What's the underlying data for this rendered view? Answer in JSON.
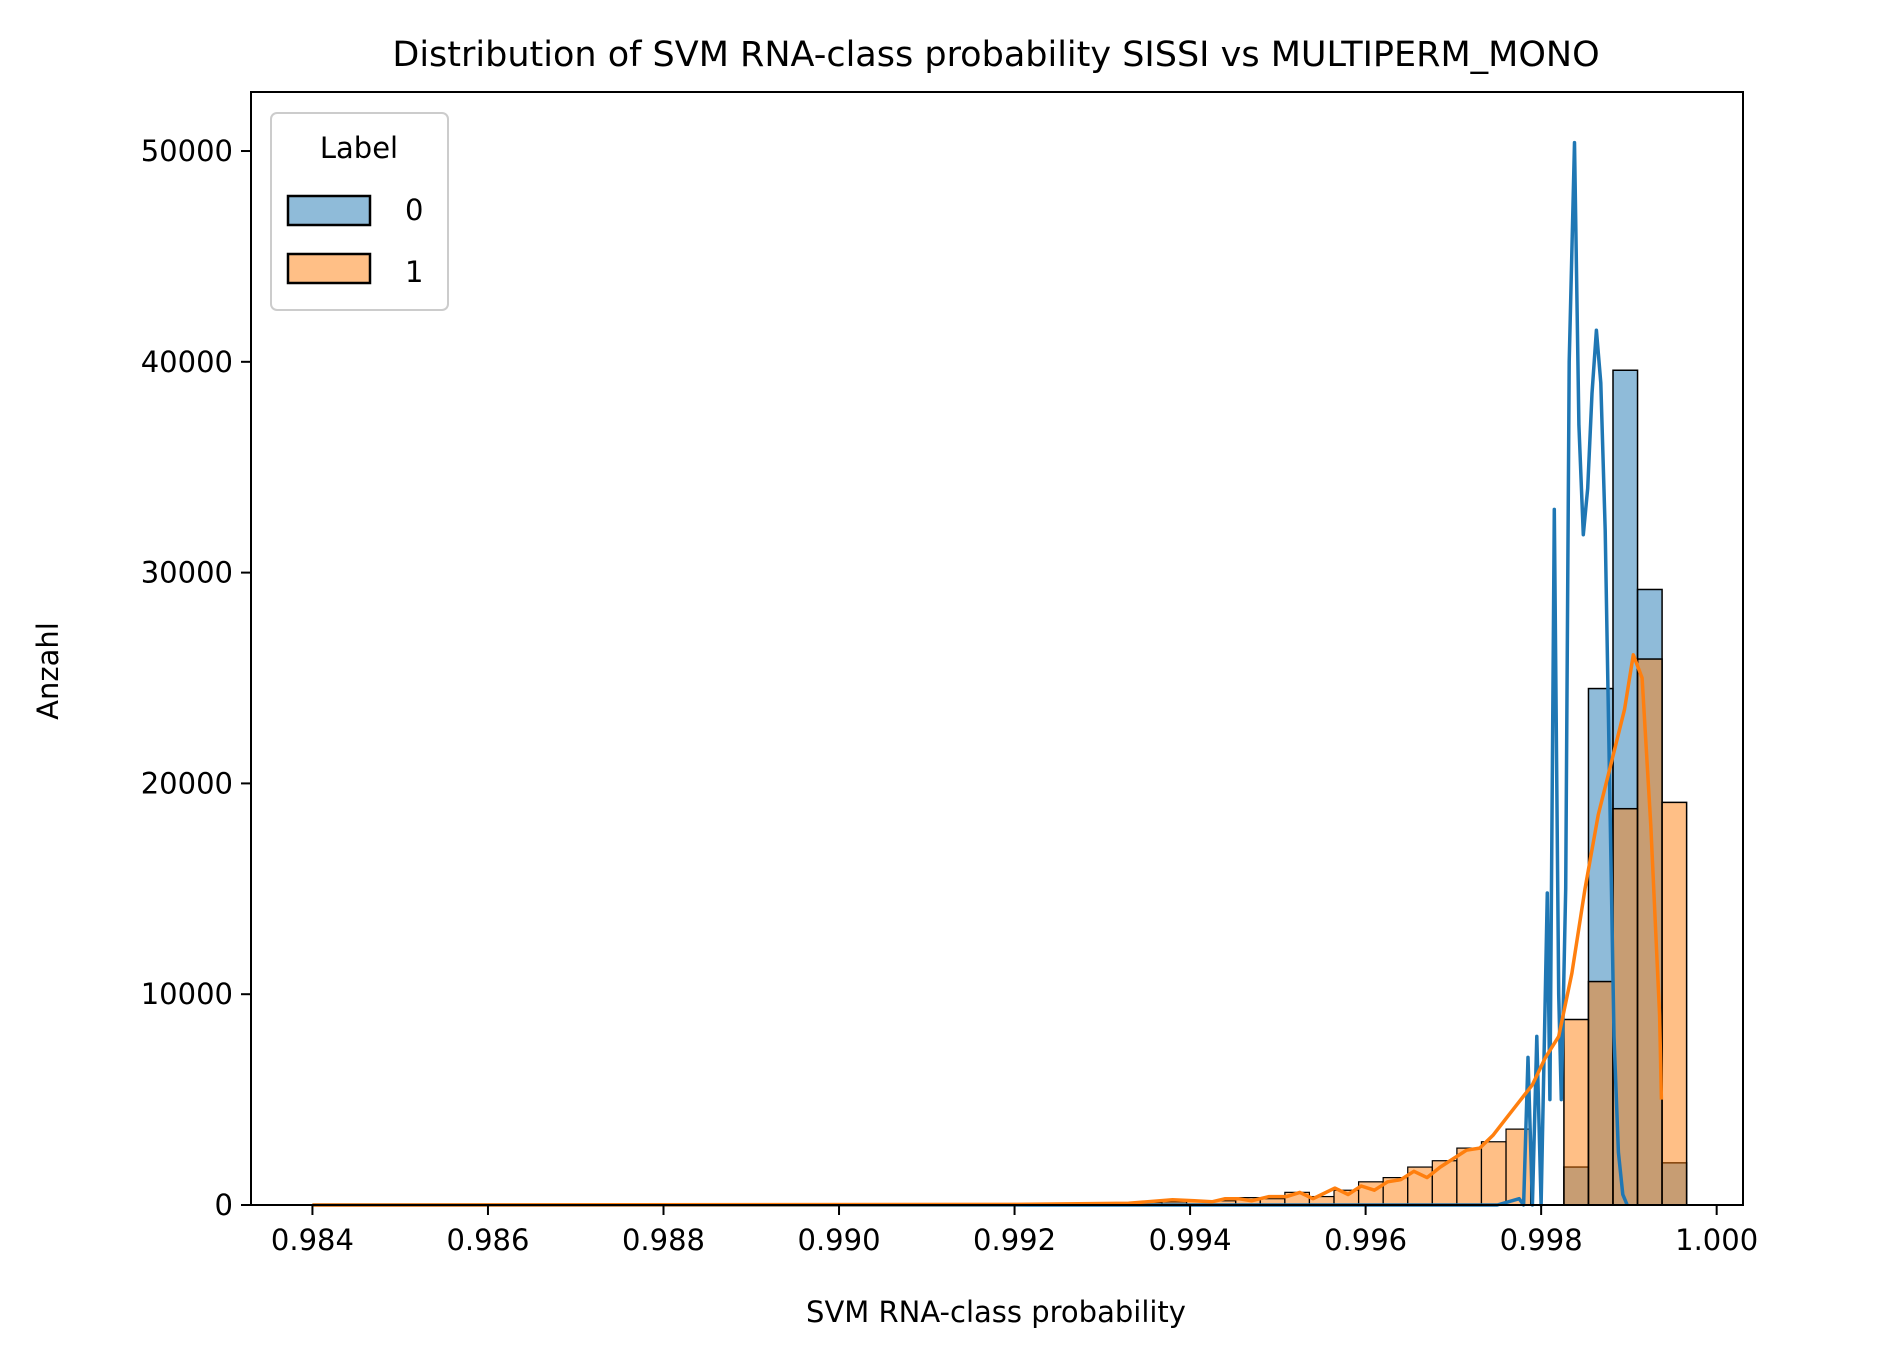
{
  "chart_data": {
    "type": "histogram",
    "title": "Distribution of SVM RNA-class probability SISSI vs MULTIPERM_MONO",
    "xlabel": "SVM RNA-class probability",
    "ylabel": "Anzahl",
    "xlim": [
      0.9833,
      1.0003
    ],
    "ylim": [
      0,
      52800
    ],
    "xticks": [
      0.984,
      0.986,
      0.988,
      0.99,
      0.992,
      0.994,
      0.996,
      0.998,
      1.0
    ],
    "xtick_labels": [
      "0.984",
      "0.986",
      "0.988",
      "0.990",
      "0.992",
      "0.994",
      "0.996",
      "0.998",
      "1.000"
    ],
    "yticks": [
      0,
      10000,
      20000,
      30000,
      40000,
      50000
    ],
    "ytick_labels": [
      "0",
      "10000",
      "20000",
      "30000",
      "40000",
      "50000"
    ],
    "grid": false,
    "legend": {
      "title": "Label",
      "placement": "top-left",
      "entries": [
        "0",
        "1"
      ]
    },
    "bins": {
      "start": 0.984,
      "width": 0.0002796,
      "count": 57
    },
    "series": [
      {
        "name": "0",
        "color": "#1f77b4",
        "fill": "rgba(31,119,180,0.5)",
        "counts": [
          0,
          0,
          0,
          0,
          0,
          0,
          0,
          0,
          0,
          0,
          0,
          0,
          0,
          0,
          0,
          0,
          0,
          0,
          0,
          0,
          0,
          0,
          0,
          0,
          0,
          0,
          0,
          0,
          0,
          0,
          0,
          0,
          0,
          0,
          0,
          0,
          0,
          0,
          0,
          0,
          0,
          0,
          0,
          0,
          0,
          0,
          0,
          0,
          0,
          0,
          0,
          1800,
          24500,
          39600,
          29200,
          2000,
          0
        ],
        "kde": [
          [
            0.984,
            0
          ],
          [
            0.9975,
            0
          ],
          [
            0.99775,
            300
          ],
          [
            0.9978,
            0
          ],
          [
            0.99785,
            7000
          ],
          [
            0.9979,
            0
          ],
          [
            0.99795,
            8000
          ],
          [
            0.998,
            0
          ],
          [
            0.99807,
            14800
          ],
          [
            0.9981,
            5000
          ],
          [
            0.99815,
            33000
          ],
          [
            0.9982,
            10000
          ],
          [
            0.99823,
            5000
          ],
          [
            0.99828,
            15000
          ],
          [
            0.99832,
            40000
          ],
          [
            0.99838,
            50400
          ],
          [
            0.99843,
            37000
          ],
          [
            0.99848,
            31800
          ],
          [
            0.99853,
            34000
          ],
          [
            0.99858,
            38500
          ],
          [
            0.99863,
            41500
          ],
          [
            0.99868,
            39000
          ],
          [
            0.99873,
            32000
          ],
          [
            0.99878,
            20000
          ],
          [
            0.99883,
            8000
          ],
          [
            0.99888,
            2500
          ],
          [
            0.99893,
            500
          ],
          [
            0.99898,
            0
          ]
        ]
      },
      {
        "name": "1",
        "color": "#ff7f0e",
        "fill": "rgba(255,127,14,0.5)",
        "counts": [
          0,
          0,
          0,
          0,
          0,
          0,
          0,
          0,
          0,
          0,
          0,
          0,
          0,
          0,
          0,
          0,
          0,
          0,
          0,
          0,
          0,
          0,
          0,
          0,
          0,
          0,
          0,
          0,
          0,
          0,
          0,
          0,
          0,
          0,
          0,
          0,
          0,
          0,
          0,
          0,
          0,
          0,
          0,
          0,
          0,
          0,
          0,
          0,
          0,
          0,
          0,
          8800,
          10600,
          18800,
          25900,
          19100,
          0
        ],
        "counts_tail": [
          [
            0.99284,
            80
          ],
          [
            0.99312,
            100
          ],
          [
            0.9934,
            120
          ],
          [
            0.99368,
            150
          ],
          [
            0.99396,
            180
          ],
          [
            0.99424,
            200
          ],
          [
            0.99452,
            350
          ],
          [
            0.9948,
            300
          ],
          [
            0.99508,
            600
          ],
          [
            0.99536,
            400
          ],
          [
            0.99564,
            700
          ],
          [
            0.99592,
            1100
          ],
          [
            0.9962,
            1300
          ],
          [
            0.99648,
            1800
          ],
          [
            0.99676,
            2100
          ],
          [
            0.99704,
            2700
          ],
          [
            0.99732,
            3000
          ],
          [
            0.9976,
            3600
          ]
        ],
        "kde": [
          [
            0.984,
            0
          ],
          [
            0.992,
            30
          ],
          [
            0.9933,
            80
          ],
          [
            0.9938,
            250
          ],
          [
            0.99405,
            200
          ],
          [
            0.99425,
            150
          ],
          [
            0.9944,
            300
          ],
          [
            0.99455,
            300
          ],
          [
            0.9947,
            200
          ],
          [
            0.9949,
            400
          ],
          [
            0.9951,
            400
          ],
          [
            0.99525,
            600
          ],
          [
            0.9954,
            300
          ],
          [
            0.9955,
            500
          ],
          [
            0.99565,
            800
          ],
          [
            0.9958,
            500
          ],
          [
            0.99595,
            900
          ],
          [
            0.9961,
            700
          ],
          [
            0.99625,
            1100
          ],
          [
            0.9964,
            1200
          ],
          [
            0.99655,
            1600
          ],
          [
            0.9967,
            1300
          ],
          [
            0.99685,
            1800
          ],
          [
            0.997,
            2200
          ],
          [
            0.99715,
            2600
          ],
          [
            0.9973,
            2700
          ],
          [
            0.99745,
            3300
          ],
          [
            0.9976,
            4100
          ],
          [
            0.99775,
            4900
          ],
          [
            0.9979,
            5700
          ],
          [
            0.99805,
            7000
          ],
          [
            0.9982,
            8000
          ],
          [
            0.99835,
            11000
          ],
          [
            0.9985,
            15000
          ],
          [
            0.99865,
            18500
          ],
          [
            0.9988,
            21000
          ],
          [
            0.99895,
            23500
          ],
          [
            0.99905,
            26100
          ],
          [
            0.99915,
            25000
          ],
          [
            0.99925,
            18000
          ],
          [
            0.99935,
            9000
          ],
          [
            0.99937,
            5000
          ]
        ]
      }
    ]
  }
}
